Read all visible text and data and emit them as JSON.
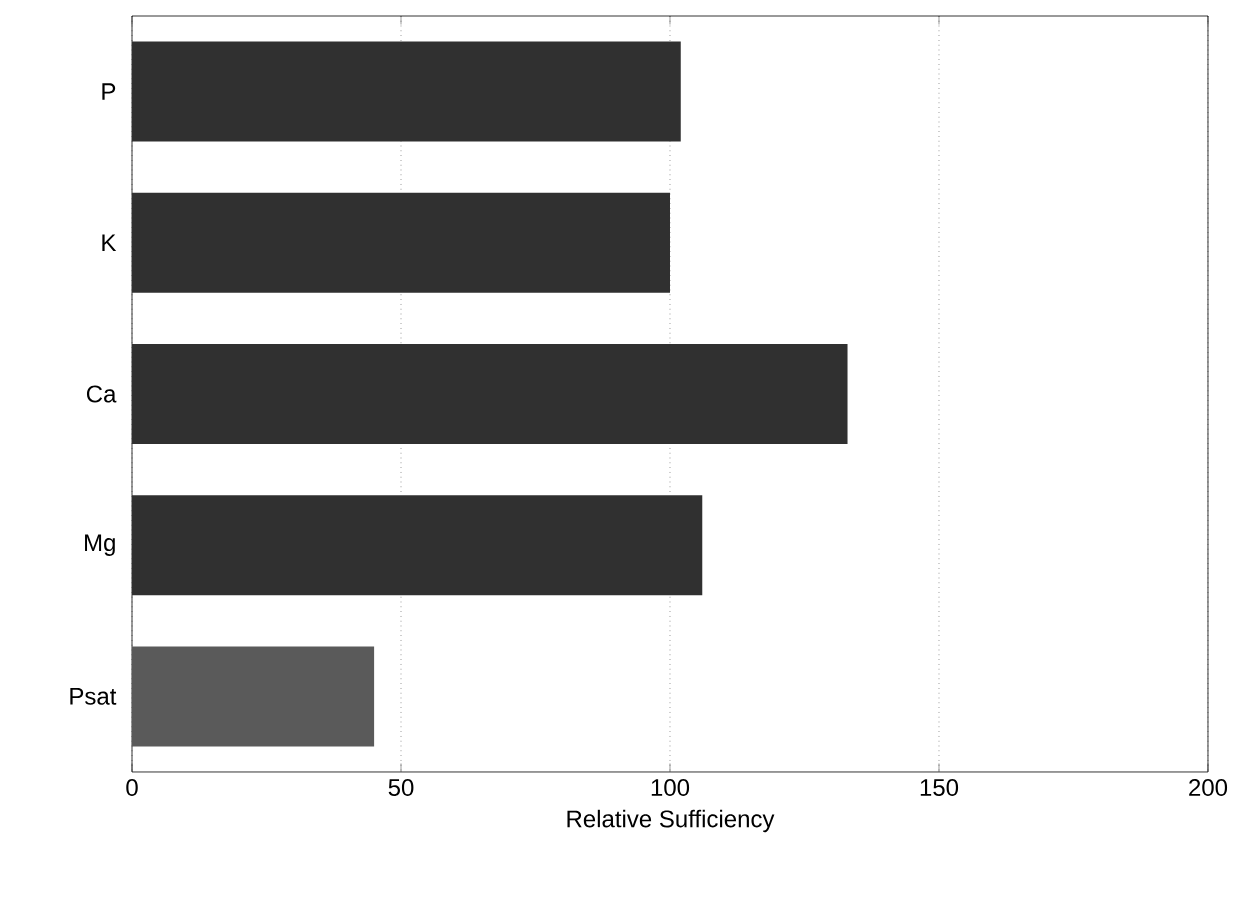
{
  "chart_data": {
    "type": "bar",
    "orientation": "horizontal",
    "xlabel": "Relative Sufficiency",
    "categories": [
      "P",
      "K",
      "Ca",
      "Mg",
      "Psat"
    ],
    "values": [
      102,
      100,
      133,
      106,
      45
    ],
    "colors": [
      "#303030",
      "#303030",
      "#303030",
      "#303030",
      "#5a5a5a"
    ],
    "xlim": [
      0,
      200
    ],
    "xticks": [
      0,
      50,
      100,
      150,
      200
    ],
    "grid": "x"
  }
}
